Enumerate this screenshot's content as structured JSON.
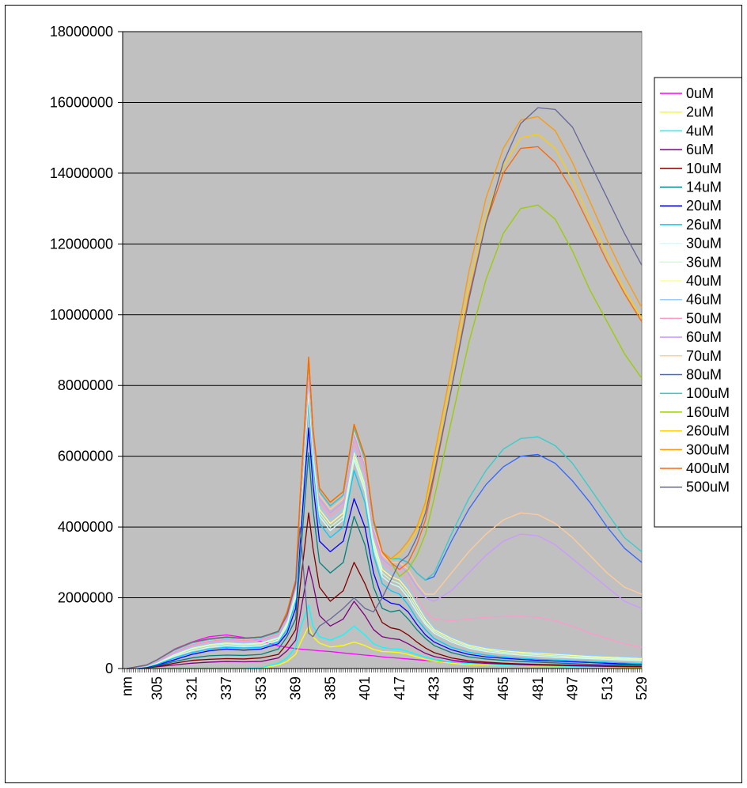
{
  "chart_data": {
    "type": "line",
    "title": "",
    "xlabel": "",
    "ylabel": "",
    "x_first_tick_label": "nm",
    "x_tick_labels": [
      "305",
      "321",
      "337",
      "353",
      "369",
      "385",
      "401",
      "417",
      "433",
      "449",
      "465",
      "481",
      "497",
      "513",
      "529"
    ],
    "xlim": [
      289,
      529
    ],
    "ylim": [
      0,
      18000000
    ],
    "y_ticks": [
      "0",
      "2000000",
      "4000000",
      "6000000",
      "8000000",
      "10000000",
      "12000000",
      "14000000",
      "16000000",
      "18000000"
    ],
    "grid": "horizontal",
    "legend_position": "right",
    "plot_background": "#c0c0c0",
    "x": [
      291,
      300,
      305,
      313,
      321,
      329,
      337,
      345,
      353,
      361,
      365,
      369,
      371,
      375,
      377,
      380,
      385,
      391,
      396,
      401,
      405,
      409,
      413,
      417,
      421,
      425,
      429,
      433,
      441,
      449,
      457,
      465,
      473,
      481,
      489,
      497,
      505,
      513,
      521,
      529
    ],
    "series": [
      {
        "name": "0uM",
        "color": "#ff00ff",
        "values": [
          0,
          100000,
          250000,
          550000,
          750000,
          900000,
          950000,
          880000,
          770000,
          640000,
          600000,
          560000,
          550000,
          530000,
          520000,
          500000,
          480000,
          440000,
          410000,
          380000,
          360000,
          330000,
          310000,
          290000,
          270000,
          250000,
          230000,
          210000,
          190000,
          170000,
          150000,
          140000,
          130000,
          120000,
          110000,
          100000,
          90000,
          80000,
          70000,
          60000
        ]
      },
      {
        "name": "2uM",
        "color": "#ffff00",
        "values": [
          0,
          0,
          0,
          0,
          0,
          0,
          0,
          0,
          10000,
          100000,
          200000,
          400000,
          700000,
          1200000,
          900000,
          720000,
          610000,
          650000,
          750000,
          650000,
          540000,
          480000,
          470000,
          450000,
          400000,
          330000,
          260000,
          210000,
          150000,
          110000,
          100000,
          90000,
          80000,
          70000,
          60000,
          50000,
          40000,
          35000,
          30000,
          25000
        ]
      },
      {
        "name": "4uM",
        "color": "#00ffff",
        "values": [
          0,
          0,
          0,
          0,
          0,
          0,
          0,
          0,
          20000,
          150000,
          300000,
          600000,
          1100000,
          1800000,
          1200000,
          900000,
          800000,
          950000,
          1200000,
          950000,
          700000,
          600000,
          560000,
          550000,
          480000,
          400000,
          320000,
          260000,
          180000,
          140000,
          120000,
          100000,
          90000,
          80000,
          70000,
          60000,
          50000,
          45000,
          40000,
          35000
        ]
      },
      {
        "name": "6uM",
        "color": "#800080",
        "values": [
          0,
          20000,
          50000,
          100000,
          150000,
          180000,
          200000,
          190000,
          200000,
          300000,
          500000,
          800000,
          1500000,
          2900000,
          2400000,
          1500000,
          1200000,
          1400000,
          1900000,
          1500000,
          1100000,
          900000,
          850000,
          820000,
          700000,
          560000,
          430000,
          340000,
          240000,
          180000,
          150000,
          130000,
          110000,
          100000,
          90000,
          80000,
          70000,
          60000,
          55000,
          50000
        ]
      },
      {
        "name": "10uM",
        "color": "#800000",
        "values": [
          0,
          20000,
          60000,
          150000,
          230000,
          260000,
          280000,
          270000,
          300000,
          400000,
          700000,
          1100000,
          2300000,
          4400000,
          3400000,
          2300000,
          1900000,
          2200000,
          3000000,
          2400000,
          1800000,
          1300000,
          1150000,
          1100000,
          950000,
          750000,
          580000,
          450000,
          300000,
          220000,
          180000,
          150000,
          130000,
          110000,
          100000,
          90000,
          80000,
          70000,
          60000,
          55000
        ]
      },
      {
        "name": "14uM",
        "color": "#008080",
        "values": [
          0,
          30000,
          80000,
          200000,
          300000,
          360000,
          380000,
          370000,
          400000,
          550000,
          900000,
          1400000,
          3000000,
          6100000,
          4500000,
          3000000,
          2700000,
          3000000,
          4300000,
          3500000,
          2300000,
          1700000,
          1600000,
          1650000,
          1400000,
          1100000,
          850000,
          650000,
          450000,
          330000,
          270000,
          230000,
          200000,
          180000,
          160000,
          140000,
          120000,
          110000,
          100000,
          90000
        ]
      },
      {
        "name": "20uM",
        "color": "#0000ff",
        "values": [
          0,
          40000,
          100000,
          250000,
          400000,
          500000,
          550000,
          520000,
          550000,
          700000,
          1000000,
          1700000,
          3500000,
          6800000,
          5200000,
          3600000,
          3300000,
          3600000,
          4800000,
          4000000,
          2700000,
          2000000,
          1850000,
          1800000,
          1600000,
          1250000,
          950000,
          750000,
          530000,
          400000,
          330000,
          290000,
          260000,
          230000,
          210000,
          190000,
          170000,
          150000,
          130000,
          120000
        ]
      },
      {
        "name": "26uM",
        "color": "#00ccff",
        "values": [
          0,
          50000,
          120000,
          300000,
          450000,
          550000,
          600000,
          580000,
          600000,
          750000,
          1100000,
          1900000,
          3900000,
          7600000,
          5800000,
          4100000,
          3700000,
          4000000,
          5600000,
          4700000,
          3200000,
          2400000,
          2200000,
          2100000,
          1800000,
          1400000,
          1100000,
          850000,
          600000,
          460000,
          380000,
          330000,
          290000,
          260000,
          240000,
          220000,
          200000,
          180000,
          160000,
          140000
        ]
      },
      {
        "name": "30uM",
        "color": "#ccffff",
        "values": [
          0,
          60000,
          150000,
          350000,
          500000,
          600000,
          650000,
          620000,
          650000,
          800000,
          1200000,
          2000000,
          4000000,
          7800000,
          6000000,
          4300000,
          3900000,
          4200000,
          5900000,
          5000000,
          3400000,
          2600000,
          2400000,
          2300000,
          2000000,
          1600000,
          1250000,
          1000000,
          750000,
          580000,
          480000,
          420000,
          380000,
          350000,
          320000,
          300000,
          280000,
          260000,
          240000,
          220000
        ]
      },
      {
        "name": "36uM",
        "color": "#ccffcc",
        "values": [
          0,
          60000,
          160000,
          380000,
          550000,
          650000,
          700000,
          670000,
          700000,
          850000,
          1250000,
          2100000,
          4100000,
          7900000,
          6100000,
          4400000,
          4000000,
          4300000,
          6000000,
          5100000,
          3500000,
          2700000,
          2500000,
          2400000,
          2100000,
          1700000,
          1300000,
          1050000,
          800000,
          620000,
          520000,
          460000,
          420000,
          390000,
          360000,
          330000,
          310000,
          290000,
          270000,
          250000
        ]
      },
      {
        "name": "40uM",
        "color": "#ffff99",
        "values": [
          0,
          70000,
          170000,
          400000,
          580000,
          680000,
          730000,
          700000,
          730000,
          880000,
          1300000,
          2200000,
          4200000,
          8000000,
          6200000,
          4500000,
          4100000,
          4400000,
          6100000,
          5200000,
          3600000,
          2800000,
          2600000,
          2500000,
          2200000,
          1800000,
          1400000,
          1100000,
          850000,
          660000,
          560000,
          500000,
          460000,
          430000,
          400000,
          370000,
          340000,
          320000,
          300000,
          280000
        ]
      },
      {
        "name": "46uM",
        "color": "#99ccff",
        "values": [
          0,
          70000,
          180000,
          420000,
          600000,
          700000,
          750000,
          720000,
          750000,
          900000,
          1350000,
          2250000,
          4300000,
          8100000,
          6300000,
          4600000,
          4200000,
          4500000,
          6200000,
          5300000,
          3700000,
          2900000,
          2700000,
          2600000,
          2300000,
          1850000,
          1450000,
          1150000,
          880000,
          690000,
          590000,
          530000,
          490000,
          460000,
          430000,
          400000,
          370000,
          350000,
          330000,
          310000
        ]
      },
      {
        "name": "50uM",
        "color": "#ff99cc",
        "values": [
          0,
          80000,
          200000,
          450000,
          650000,
          750000,
          800000,
          770000,
          800000,
          950000,
          1400000,
          2300000,
          4400000,
          8300000,
          6400000,
          4700000,
          4300000,
          4600000,
          6400000,
          5500000,
          3800000,
          3000000,
          2800000,
          2800000,
          2500000,
          2000000,
          1600000,
          1400000,
          1350000,
          1400000,
          1450000,
          1470000,
          1480000,
          1450000,
          1350000,
          1200000,
          1000000,
          850000,
          700000,
          600000
        ]
      },
      {
        "name": "60uM",
        "color": "#cc99ff",
        "values": [
          0,
          90000,
          220000,
          480000,
          680000,
          780000,
          830000,
          800000,
          830000,
          980000,
          1450000,
          2350000,
          4500000,
          8500000,
          6500000,
          4800000,
          4400000,
          4700000,
          6600000,
          5700000,
          3900000,
          3100000,
          2900000,
          2900000,
          2700000,
          2300000,
          2000000,
          1900000,
          2200000,
          2700000,
          3200000,
          3600000,
          3800000,
          3750000,
          3500000,
          3100000,
          2700000,
          2300000,
          1900000,
          1700000
        ]
      },
      {
        "name": "70uM",
        "color": "#ffcc99",
        "values": [
          0,
          90000,
          230000,
          500000,
          700000,
          800000,
          850000,
          820000,
          850000,
          1000000,
          1500000,
          2400000,
          4600000,
          8600000,
          6600000,
          4900000,
          4500000,
          4800000,
          6700000,
          5800000,
          4000000,
          3200000,
          3000000,
          3000000,
          2800000,
          2400000,
          2100000,
          2100000,
          2700000,
          3300000,
          3800000,
          4200000,
          4400000,
          4350000,
          4100000,
          3700000,
          3200000,
          2700000,
          2300000,
          2100000
        ]
      },
      {
        "name": "80uM",
        "color": "#3366ff",
        "values": [
          0,
          90000,
          240000,
          520000,
          720000,
          820000,
          870000,
          840000,
          870000,
          1020000,
          1550000,
          2450000,
          4700000,
          8700000,
          6700000,
          5000000,
          4600000,
          4900000,
          6800000,
          5900000,
          4100000,
          3300000,
          3100000,
          3100000,
          3000000,
          2700000,
          2500000,
          2600000,
          3600000,
          4500000,
          5200000,
          5700000,
          6000000,
          6050000,
          5800000,
          5300000,
          4700000,
          4000000,
          3400000,
          3000000
        ]
      },
      {
        "name": "100uM",
        "color": "#33cccc",
        "values": [
          0,
          90000,
          240000,
          520000,
          720000,
          820000,
          870000,
          840000,
          870000,
          1020000,
          1550000,
          2450000,
          4700000,
          8700000,
          6700000,
          5000000,
          4600000,
          4900000,
          6800000,
          5900000,
          4100000,
          3300000,
          3100000,
          3100000,
          3000000,
          2700000,
          2500000,
          2700000,
          3800000,
          4800000,
          5600000,
          6200000,
          6500000,
          6550000,
          6300000,
          5800000,
          5100000,
          4400000,
          3700000,
          3300000
        ]
      },
      {
        "name": "160uM",
        "color": "#99cc00",
        "values": [
          0,
          100000,
          250000,
          540000,
          740000,
          840000,
          890000,
          860000,
          890000,
          1050000,
          1600000,
          2500000,
          4800000,
          8800000,
          6800000,
          5100000,
          4700000,
          5000000,
          6900000,
          6000000,
          4200000,
          3300000,
          3000000,
          2600000,
          2800000,
          3200000,
          3800000,
          4800000,
          7000000,
          9200000,
          11000000,
          12300000,
          13000000,
          13100000,
          12700000,
          11800000,
          10700000,
          9800000,
          8900000,
          8200000
        ]
      },
      {
        "name": "260uM",
        "color": "#ffcc00",
        "values": [
          0,
          100000,
          250000,
          540000,
          740000,
          840000,
          890000,
          860000,
          890000,
          1050000,
          1600000,
          2500000,
          4800000,
          8800000,
          6800000,
          5100000,
          4700000,
          5000000,
          6900000,
          6000000,
          4200000,
          3300000,
          3100000,
          3200000,
          3500000,
          3900000,
          4600000,
          5800000,
          8200000,
          10800000,
          12800000,
          14200000,
          15000000,
          15100000,
          14700000,
          13800000,
          12700000,
          11700000,
          10700000,
          9900000
        ]
      },
      {
        "name": "300uM",
        "color": "#ff9900",
        "values": [
          0,
          100000,
          250000,
          540000,
          740000,
          840000,
          890000,
          860000,
          890000,
          1050000,
          1600000,
          2500000,
          4800000,
          8800000,
          6800000,
          5100000,
          4700000,
          5000000,
          6900000,
          6000000,
          4200000,
          3300000,
          3100000,
          3300000,
          3600000,
          4000000,
          4700000,
          6000000,
          8500000,
          11200000,
          13300000,
          14700000,
          15500000,
          15600000,
          15200000,
          14300000,
          13200000,
          12100000,
          11100000,
          10200000
        ]
      },
      {
        "name": "400uM",
        "color": "#ff6600",
        "values": [
          0,
          100000,
          250000,
          540000,
          740000,
          840000,
          890000,
          860000,
          890000,
          1050000,
          1600000,
          2500000,
          4800000,
          8800000,
          6800000,
          5100000,
          4700000,
          5000000,
          6900000,
          6000000,
          4200000,
          3300000,
          3000000,
          2800000,
          3000000,
          3500000,
          4200000,
          5400000,
          7900000,
          10500000,
          12600000,
          14000000,
          14700000,
          14750000,
          14300000,
          13500000,
          12500000,
          11500000,
          10600000,
          9800000
        ]
      },
      {
        "name": "500uM",
        "color": "#666699",
        "values": [
          0,
          100000,
          250000,
          540000,
          740000,
          840000,
          890000,
          860000,
          890000,
          1050000,
          1500000,
          2400000,
          4000000,
          1000000,
          900000,
          1200000,
          1400000,
          1700000,
          2000000,
          1700000,
          1600000,
          2000000,
          2500000,
          3000000,
          3200000,
          3700000,
          4400000,
          5500000,
          7900000,
          10400000,
          12600000,
          14300000,
          15400000,
          15850000,
          15800000,
          15300000,
          14300000,
          13300000,
          12300000,
          11400000
        ]
      }
    ]
  }
}
